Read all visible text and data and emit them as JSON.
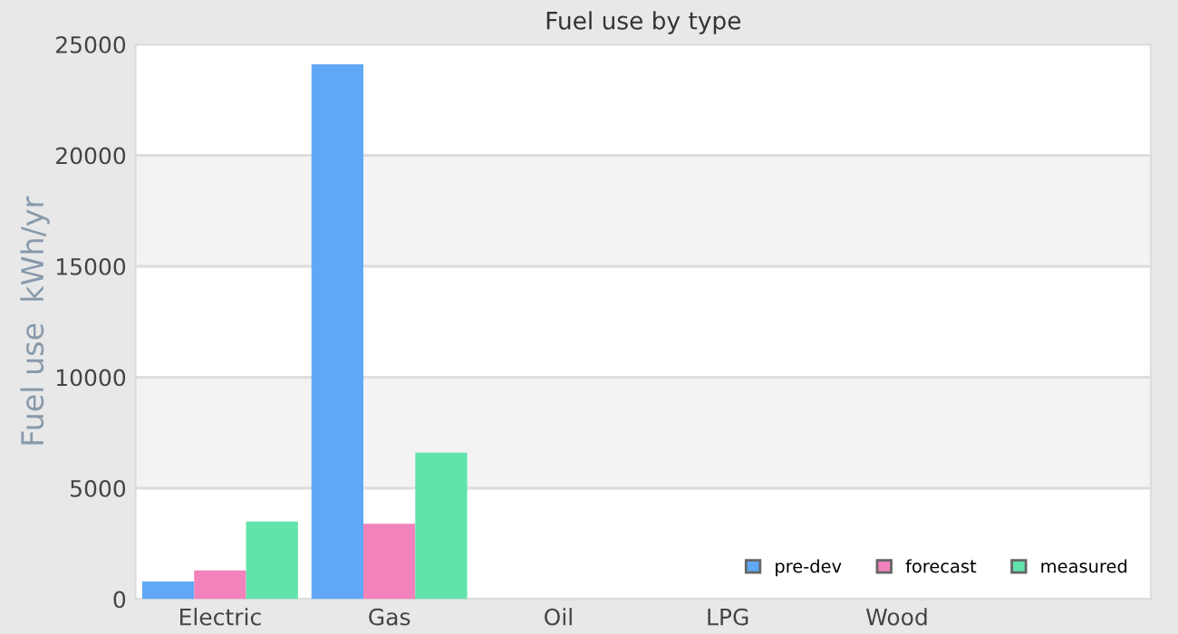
{
  "chart_data": {
    "type": "bar",
    "title": "Fuel use by type",
    "ylabel": "Fuel use  kWh/yr",
    "categories": [
      "Electric",
      "Gas",
      "Oil",
      "LPG",
      "Wood",
      null
    ],
    "series": [
      {
        "name": "pre-dev",
        "color": "#60a8f5",
        "values": [
          800,
          24100,
          0,
          0,
          0,
          null
        ]
      },
      {
        "name": "forecast",
        "color": "#f282bb",
        "values": [
          1300,
          3400,
          0,
          0,
          0,
          null
        ]
      },
      {
        "name": "measured",
        "color": "#62e3ab",
        "values": [
          3500,
          6600,
          0,
          0,
          0,
          null
        ]
      }
    ],
    "ylim": [
      0,
      25000
    ],
    "yticks": [
      0,
      5000,
      10000,
      15000,
      20000,
      25000
    ],
    "grid": "y",
    "legend": "bottom right"
  }
}
